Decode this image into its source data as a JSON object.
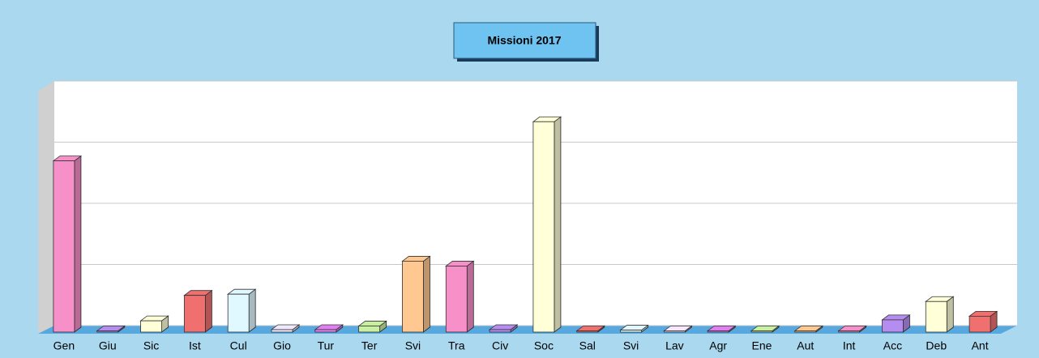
{
  "chart_data": {
    "type": "bar3d",
    "title": "Missioni 2017",
    "categories": [
      "Gen",
      "Giu",
      "Sic",
      "Ist",
      "Cul",
      "Gio",
      "Tur",
      "Ter",
      "Svi",
      "Tra",
      "Civ",
      "Soc",
      "Sal",
      "Svi",
      "Lav",
      "Agr",
      "Ene",
      "Aut",
      "Int",
      "Acc",
      "Deb",
      "Ant"
    ],
    "values": [
      70,
      0.5,
      4.6,
      15,
      15.5,
      1,
      1,
      2.5,
      29,
      27,
      1,
      86,
      0.5,
      0.8,
      0.5,
      0.5,
      0.5,
      0.5,
      0.5,
      5,
      12.5,
      6.5
    ],
    "colors": [
      "#f78fc8",
      "#b58cf0",
      "#ffffd8",
      "#f07070",
      "#e0f8ff",
      "#f0e8ff",
      "#e080f0",
      "#c8f0a0",
      "#ffc890",
      "#f78fc8",
      "#b58cf0",
      "#ffffd8",
      "#f07070",
      "#e0f8ff",
      "#f8e8ff",
      "#e080f0",
      "#c8f0a0",
      "#ffc890",
      "#f78fc8",
      "#b58cf0",
      "#ffffd8",
      "#f07070"
    ],
    "ylim": [
      0,
      100
    ],
    "yticks": [
      0,
      25,
      50,
      75,
      100
    ],
    "grid": true
  }
}
